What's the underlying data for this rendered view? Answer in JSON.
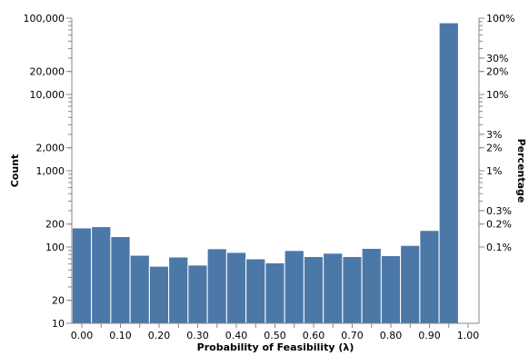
{
  "chart_data": {
    "type": "bar",
    "xlabel": "Probability of Feasibility (λ)",
    "ylabel": "Count",
    "y2label": "Percentage",
    "x_scale": "linear",
    "y_scale": "log",
    "xlim": [
      0.0,
      1.0
    ],
    "ylim": [
      10,
      100000
    ],
    "x_ticks": [
      "0.00",
      "0.10",
      "0.20",
      "0.30",
      "0.40",
      "0.50",
      "0.60",
      "0.70",
      "0.80",
      "0.90",
      "1.00"
    ],
    "y_ticks": [
      "10",
      "20",
      "100",
      "200",
      "1,000",
      "2,000",
      "10,000",
      "20,000",
      "100,000"
    ],
    "y2_ticks": [
      "0.1%",
      "0.2%",
      "0.3%",
      "1%",
      "2%",
      "3%",
      "10%",
      "20%",
      "30%",
      "100%"
    ],
    "bins": [
      {
        "x0": -0.025,
        "x1": 0.025,
        "count": 178
      },
      {
        "x0": 0.025,
        "x1": 0.075,
        "count": 185
      },
      {
        "x0": 0.075,
        "x1": 0.125,
        "count": 137
      },
      {
        "x0": 0.125,
        "x1": 0.175,
        "count": 78
      },
      {
        "x0": 0.175,
        "x1": 0.225,
        "count": 56
      },
      {
        "x0": 0.225,
        "x1": 0.275,
        "count": 74
      },
      {
        "x0": 0.275,
        "x1": 0.325,
        "count": 58
      },
      {
        "x0": 0.325,
        "x1": 0.375,
        "count": 95
      },
      {
        "x0": 0.375,
        "x1": 0.425,
        "count": 85
      },
      {
        "x0": 0.425,
        "x1": 0.475,
        "count": 70
      },
      {
        "x0": 0.475,
        "x1": 0.525,
        "count": 62
      },
      {
        "x0": 0.525,
        "x1": 0.575,
        "count": 90
      },
      {
        "x0": 0.575,
        "x1": 0.625,
        "count": 75
      },
      {
        "x0": 0.625,
        "x1": 0.675,
        "count": 83
      },
      {
        "x0": 0.675,
        "x1": 0.725,
        "count": 75
      },
      {
        "x0": 0.725,
        "x1": 0.775,
        "count": 96
      },
      {
        "x0": 0.775,
        "x1": 0.825,
        "count": 77
      },
      {
        "x0": 0.825,
        "x1": 0.875,
        "count": 105
      },
      {
        "x0": 0.875,
        "x1": 0.925,
        "count": 165
      },
      {
        "x0": 0.925,
        "x1": 0.975,
        "count": 87000
      }
    ],
    "bar_color": "#4c78a8",
    "grid": false
  }
}
